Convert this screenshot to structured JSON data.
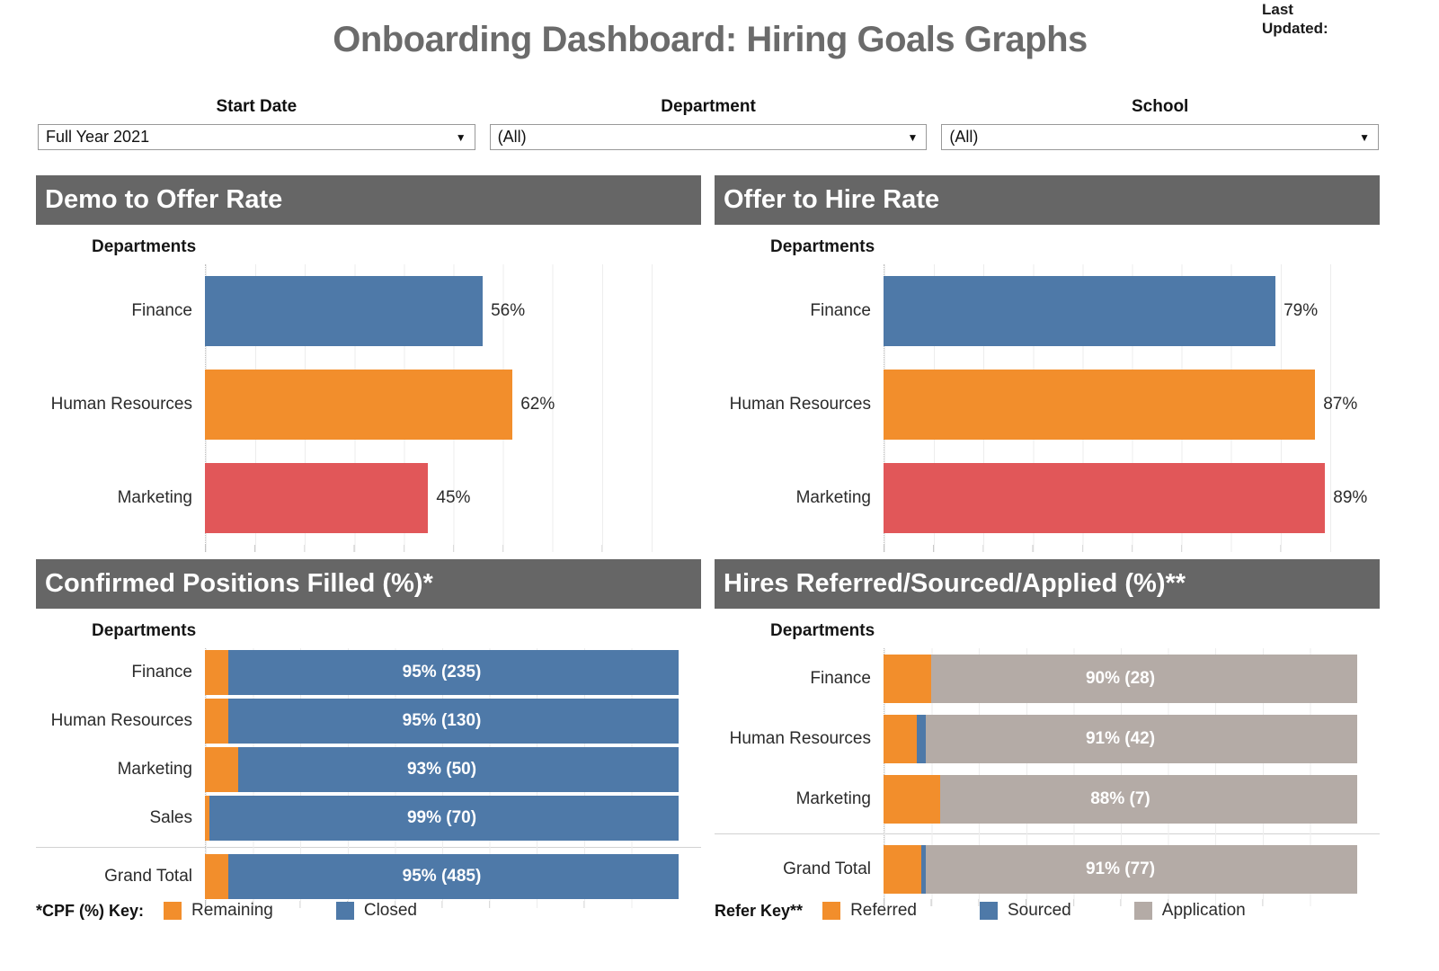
{
  "page": {
    "title": "Onboarding Dashboard: Hiring Goals Graphs",
    "last_updated_line1": "Last",
    "last_updated_line2": "Updated:"
  },
  "filters": [
    {
      "label": "Start Date",
      "value": "Full Year 2021"
    },
    {
      "label": "Department",
      "value": "(All)"
    },
    {
      "label": "School",
      "value": "(All)"
    }
  ],
  "colors": {
    "blue": "#4e79a8",
    "orange": "#f28e2c",
    "red": "#e15759",
    "taupe": "#b4aba6",
    "header_gray": "#666666",
    "title_gray": "#6b6b6b"
  },
  "chart_data": [
    {
      "type": "bar",
      "orientation": "horizontal",
      "title": "Demo to Offer Rate",
      "ylabel": "Departments",
      "xlim": [
        0,
        100
      ],
      "grid": true,
      "categories": [
        "Finance",
        "Human Resources",
        "Marketing"
      ],
      "values": [
        56,
        62,
        45
      ],
      "value_labels": [
        "56%",
        "62%",
        "45%"
      ],
      "bar_colors": [
        "#4e79a8",
        "#f28e2c",
        "#e15759"
      ]
    },
    {
      "type": "bar",
      "orientation": "horizontal",
      "title": "Offer to Hire Rate",
      "ylabel": "Departments",
      "xlim": [
        0,
        100
      ],
      "grid": true,
      "categories": [
        "Finance",
        "Human Resources",
        "Marketing"
      ],
      "values": [
        79,
        87,
        89
      ],
      "value_labels": [
        "79%",
        "87%",
        "89%"
      ],
      "bar_colors": [
        "#4e79a8",
        "#f28e2c",
        "#e15759"
      ]
    },
    {
      "type": "bar",
      "orientation": "horizontal",
      "stacked": true,
      "title": "Confirmed Positions Filled (%)*",
      "ylabel": "Departments",
      "xlim": [
        0,
        100
      ],
      "grid": true,
      "categories": [
        "Finance",
        "Human Resources",
        "Marketing",
        "Sales",
        "Grand Total"
      ],
      "series": [
        {
          "name": "Remaining",
          "color": "#f28e2c",
          "values": [
            5,
            5,
            7,
            1,
            5
          ]
        },
        {
          "name": "Closed",
          "color": "#4e79a8",
          "values": [
            95,
            95,
            93,
            99,
            95
          ]
        }
      ],
      "bar_labels": [
        "95% (235)",
        "95% (130)",
        "93% (50)",
        "99% (70)",
        "95% (485)"
      ]
    },
    {
      "type": "bar",
      "orientation": "horizontal",
      "stacked": true,
      "title": "Hires Referred/Sourced/Applied (%)**",
      "ylabel": "Departments",
      "xlim": [
        0,
        100
      ],
      "grid": true,
      "categories": [
        "Finance",
        "Human Resources",
        "Marketing",
        "Grand Total"
      ],
      "series": [
        {
          "name": "Referred",
          "color": "#f28e2c",
          "values": [
            10,
            7,
            12,
            8
          ]
        },
        {
          "name": "Sourced",
          "color": "#4e79a8",
          "values": [
            0,
            2,
            0,
            1
          ]
        },
        {
          "name": "Application",
          "color": "#b4aba6",
          "values": [
            90,
            91,
            88,
            91
          ]
        }
      ],
      "bar_labels": [
        "90% (28)",
        "91% (42)",
        "88% (7)",
        "91% (77)"
      ]
    }
  ],
  "legends": [
    {
      "key_label": "*CPF (%) Key:",
      "items": [
        {
          "label": "Remaining",
          "color": "#f28e2c"
        },
        {
          "label": "Closed",
          "color": "#4e79a8"
        }
      ]
    },
    {
      "key_label": "Refer Key**",
      "items": [
        {
          "label": "Referred",
          "color": "#f28e2c"
        },
        {
          "label": "Sourced",
          "color": "#4e79a8"
        },
        {
          "label": "Application",
          "color": "#b4aba6"
        }
      ]
    }
  ]
}
